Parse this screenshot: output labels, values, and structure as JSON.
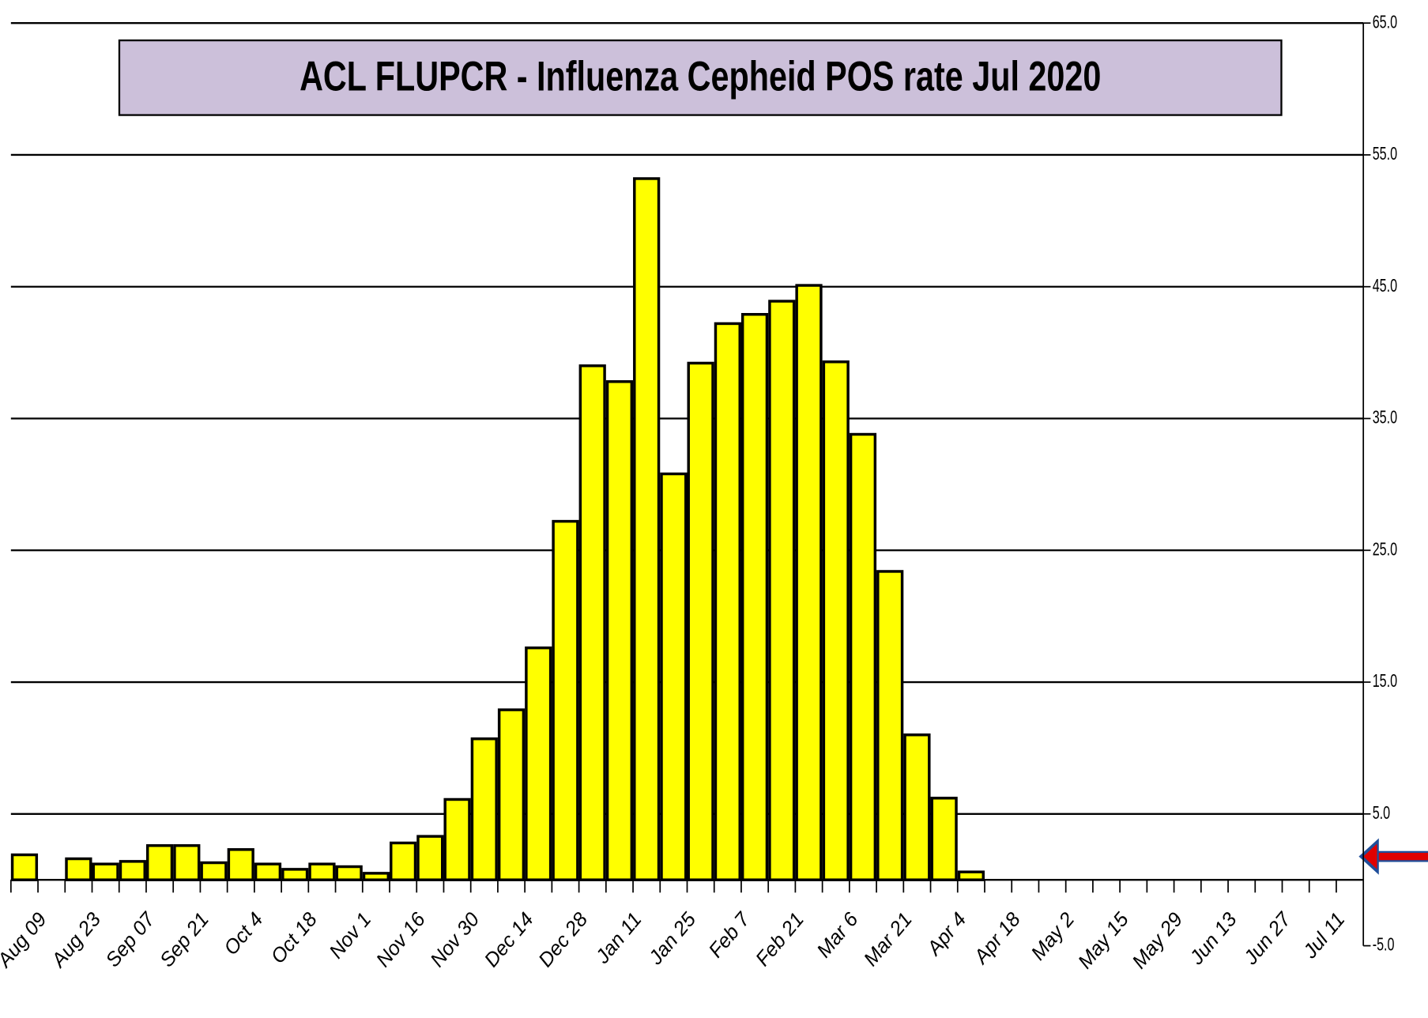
{
  "chart_data": {
    "type": "bar",
    "title": "ACL FLUPCR -  Influenza Cepheid POS rate Jul 2020",
    "categories": [
      "Aug 09",
      null,
      "Aug 23",
      null,
      "Sep 07",
      null,
      "Sep 21",
      null,
      "Oct 4",
      null,
      "Oct 18",
      null,
      "Nov 1",
      null,
      "Nov 16",
      null,
      "Nov 30",
      null,
      "Dec 14",
      null,
      "Dec 28",
      null,
      "Jan 11",
      null,
      "Jan 25",
      null,
      "Feb 7",
      null,
      "Feb 21",
      null,
      "Mar 6",
      null,
      "Mar 21",
      null,
      "Apr 4",
      null,
      "Apr 18",
      null,
      "May 2",
      null,
      "May 15",
      null,
      "May 29",
      null,
      "Jun 13",
      null,
      "Jun 27",
      null,
      "Jul 11",
      null
    ],
    "values": [
      1.9,
      null,
      1.6,
      1.2,
      1.4,
      2.6,
      2.6,
      1.3,
      2.3,
      1.2,
      0.8,
      1.2,
      1.0,
      0.5,
      2.8,
      3.3,
      6.1,
      10.7,
      12.9,
      17.6,
      27.2,
      39.0,
      37.8,
      53.2,
      30.8,
      39.2,
      42.2,
      42.9,
      43.9,
      45.1,
      39.3,
      33.8,
      23.4,
      11.0,
      6.2,
      0.6,
      null,
      null,
      null,
      null,
      null,
      null,
      null,
      null,
      null,
      null,
      null,
      null,
      null,
      null
    ],
    "color": "#ffff00",
    "ylim": [
      -5,
      65
    ],
    "yticks": [
      {
        "value": -5,
        "label": "-5.0"
      },
      {
        "value": 5,
        "label": "5.0"
      },
      {
        "value": 15,
        "label": "15.0"
      },
      {
        "value": 25,
        "label": "25.0"
      },
      {
        "value": 35,
        "label": "35.0"
      },
      {
        "value": 45,
        "label": "45.0"
      },
      {
        "value": 55,
        "label": "55.0"
      },
      {
        "value": 65,
        "label": "65.0"
      }
    ],
    "grid": true
  }
}
